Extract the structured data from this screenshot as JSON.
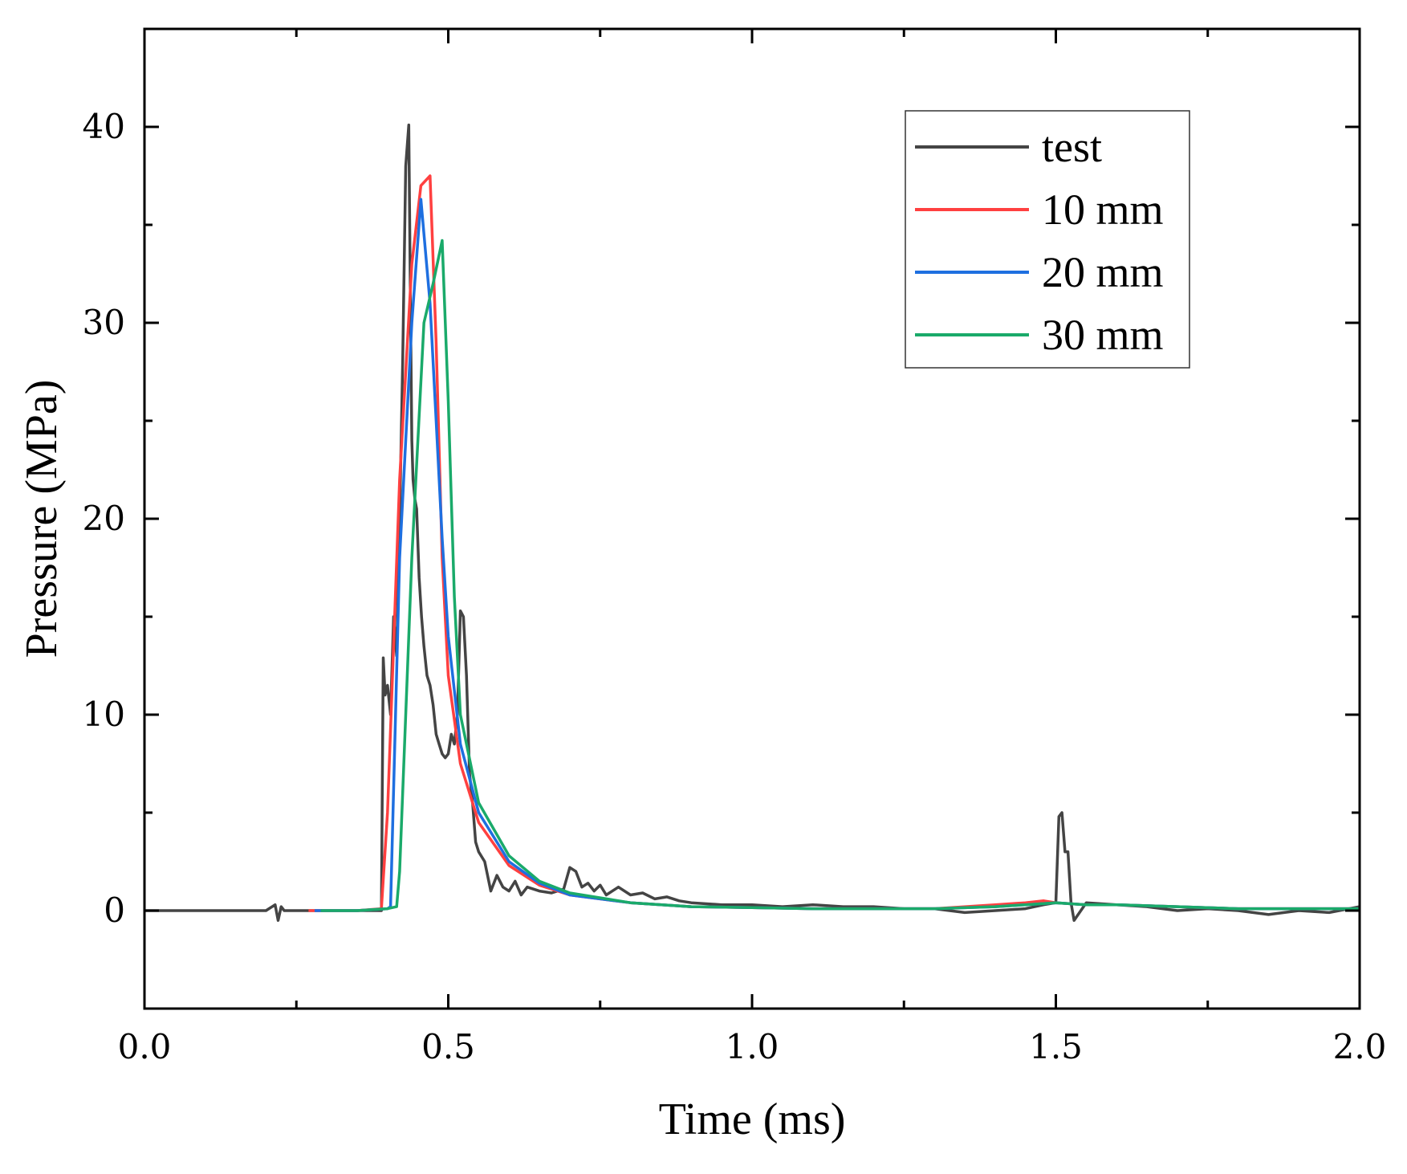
{
  "chart_data": {
    "type": "line",
    "title": "",
    "xlabel": "Time (ms)",
    "ylabel": "Pressure (MPa)",
    "xlim": [
      0,
      2.0
    ],
    "ylim": [
      -5,
      45
    ],
    "xticks": [
      0.0,
      0.5,
      1.0,
      1.5,
      2.0
    ],
    "xtick_labels": [
      "0.0",
      "0.5",
      "1.0",
      "1.5",
      "2.0"
    ],
    "yticks": [
      0,
      10,
      20,
      30,
      40
    ],
    "ytick_labels": [
      "0",
      "10",
      "20",
      "30",
      "40"
    ],
    "grid": false,
    "legend_position": "top-right",
    "series": [
      {
        "name": "test",
        "color": "#444444",
        "x": [
          0.0,
          0.2,
          0.215,
          0.22,
          0.225,
          0.23,
          0.25,
          0.3,
          0.35,
          0.39,
          0.393,
          0.396,
          0.4,
          0.405,
          0.41,
          0.415,
          0.42,
          0.425,
          0.43,
          0.435,
          0.438,
          0.44,
          0.442,
          0.445,
          0.448,
          0.452,
          0.456,
          0.46,
          0.465,
          0.47,
          0.475,
          0.48,
          0.485,
          0.49,
          0.495,
          0.5,
          0.505,
          0.51,
          0.515,
          0.52,
          0.525,
          0.53,
          0.535,
          0.54,
          0.545,
          0.55,
          0.56,
          0.57,
          0.58,
          0.59,
          0.6,
          0.61,
          0.62,
          0.63,
          0.65,
          0.67,
          0.69,
          0.7,
          0.71,
          0.72,
          0.73,
          0.74,
          0.75,
          0.76,
          0.78,
          0.8,
          0.82,
          0.84,
          0.86,
          0.88,
          0.9,
          0.95,
          1.0,
          1.05,
          1.1,
          1.15,
          1.2,
          1.25,
          1.3,
          1.35,
          1.4,
          1.45,
          1.48,
          1.5,
          1.505,
          1.51,
          1.515,
          1.52,
          1.525,
          1.53,
          1.55,
          1.6,
          1.65,
          1.7,
          1.75,
          1.8,
          1.85,
          1.9,
          1.95,
          2.0
        ],
        "values": [
          0,
          0,
          0.3,
          -0.5,
          0.2,
          0,
          0,
          0,
          0,
          0,
          12.9,
          11.0,
          11.5,
          10.0,
          15.0,
          13.0,
          20.0,
          28.0,
          38.0,
          40.1,
          30.0,
          24.0,
          22.0,
          21.0,
          20.5,
          17.0,
          15.0,
          13.5,
          12.0,
          11.5,
          10.5,
          9.0,
          8.5,
          8.0,
          7.8,
          8.0,
          9.0,
          8.5,
          10.0,
          15.3,
          15.0,
          12.0,
          7.0,
          5.5,
          3.5,
          3.0,
          2.5,
          1.0,
          1.8,
          1.2,
          1.0,
          1.5,
          0.8,
          1.2,
          1.0,
          0.9,
          1.1,
          2.2,
          2.0,
          1.2,
          1.4,
          1.0,
          1.3,
          0.8,
          1.2,
          0.8,
          0.9,
          0.6,
          0.7,
          0.5,
          0.4,
          0.3,
          0.3,
          0.2,
          0.3,
          0.2,
          0.2,
          0.1,
          0.1,
          -0.1,
          0.0,
          0.1,
          0.3,
          0.4,
          4.8,
          5.0,
          3.0,
          3.0,
          0.4,
          -0.5,
          0.4,
          0.3,
          0.2,
          0.0,
          0.1,
          0.0,
          -0.2,
          0.0,
          -0.1,
          0.2
        ]
      },
      {
        "name": "10 mm",
        "color": "#ff4040",
        "x": [
          0.27,
          0.3,
          0.35,
          0.39,
          0.4,
          0.42,
          0.44,
          0.455,
          0.47,
          0.48,
          0.49,
          0.5,
          0.52,
          0.55,
          0.6,
          0.65,
          0.7,
          0.8,
          0.9,
          1.0,
          1.1,
          1.2,
          1.3,
          1.4,
          1.45,
          1.48,
          1.5,
          1.55,
          1.6,
          1.7,
          1.8,
          1.9,
          2.0
        ],
        "values": [
          0,
          0,
          0,
          0.1,
          5.0,
          22.0,
          33.0,
          37.0,
          37.5,
          29.0,
          18.0,
          12.0,
          7.5,
          4.5,
          2.3,
          1.3,
          0.8,
          0.4,
          0.2,
          0.15,
          0.1,
          0.1,
          0.1,
          0.3,
          0.4,
          0.5,
          0.4,
          0.3,
          0.3,
          0.2,
          0.1,
          0.1,
          0.1
        ]
      },
      {
        "name": "20 mm",
        "color": "#1e6fe0",
        "x": [
          0.28,
          0.3,
          0.35,
          0.4,
          0.405,
          0.42,
          0.44,
          0.455,
          0.47,
          0.48,
          0.49,
          0.5,
          0.52,
          0.55,
          0.6,
          0.65,
          0.7,
          0.8,
          0.9,
          1.0,
          1.1,
          1.2,
          1.3,
          1.4,
          1.45,
          1.5,
          1.55,
          1.6,
          1.7,
          1.8,
          1.9,
          2.0
        ],
        "values": [
          0,
          0,
          0,
          0.1,
          0.2,
          18.0,
          30.0,
          36.3,
          31.0,
          25.0,
          19.0,
          14.0,
          8.5,
          5.0,
          2.5,
          1.4,
          0.8,
          0.4,
          0.2,
          0.15,
          0.1,
          0.1,
          0.1,
          0.2,
          0.3,
          0.4,
          0.3,
          0.3,
          0.2,
          0.1,
          0.1,
          0.1
        ]
      },
      {
        "name": "30 mm",
        "color": "#1aaa6a",
        "x": [
          0.29,
          0.3,
          0.35,
          0.4,
          0.415,
          0.42,
          0.44,
          0.46,
          0.475,
          0.49,
          0.5,
          0.51,
          0.52,
          0.55,
          0.6,
          0.65,
          0.7,
          0.8,
          0.9,
          1.0,
          1.1,
          1.2,
          1.3,
          1.4,
          1.45,
          1.5,
          1.55,
          1.6,
          1.7,
          1.8,
          1.9,
          2.0
        ],
        "values": [
          0,
          0,
          0,
          0.1,
          0.2,
          2.0,
          18.0,
          30.0,
          32.0,
          34.2,
          26.0,
          16.0,
          10.0,
          5.5,
          2.8,
          1.5,
          0.9,
          0.4,
          0.2,
          0.15,
          0.1,
          0.1,
          0.1,
          0.2,
          0.3,
          0.4,
          0.3,
          0.3,
          0.2,
          0.1,
          0.1,
          0.1
        ]
      }
    ]
  }
}
